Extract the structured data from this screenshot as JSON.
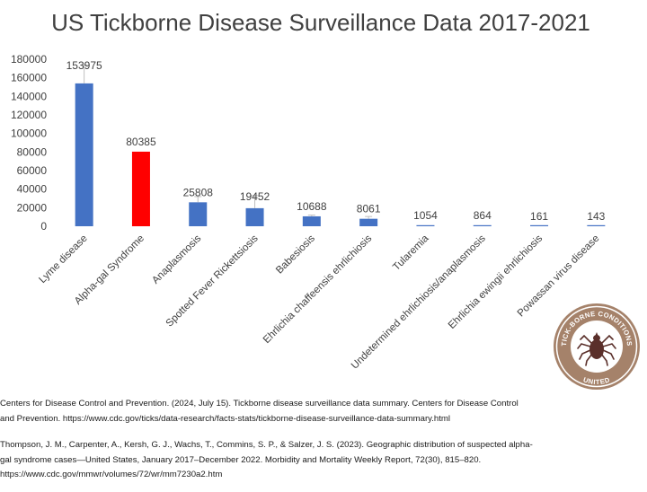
{
  "chart_data": {
    "type": "bar",
    "title": "US Tickborne Disease Surveillance Data 2017-2021",
    "xlabel": "",
    "ylabel": "",
    "ylim": [
      0,
      180000
    ],
    "yticks": [
      "0",
      "20000",
      "40000",
      "60000",
      "80000",
      "100000",
      "120000",
      "140000",
      "160000",
      "180000"
    ],
    "grid": false,
    "legend": "none",
    "categories": [
      "Lyme disease",
      "Alpha-gal Syndrome",
      "Anaplasmosis",
      "Spotted Fever Rickettsiosis",
      "Babesiosis",
      "Ehrlichia chaffeensis ehrlichiosis",
      "Tularemia",
      "Undetermined ehrlichiosis/anaplasmosis",
      "Ehrlichia ewingii ehrlichiosis",
      "Powassan virus disease"
    ],
    "values": [
      153975,
      80385,
      25808,
      19452,
      10688,
      8061,
      1054,
      864,
      161,
      143
    ],
    "value_labels": [
      "153975",
      "80385",
      "25808",
      "19452",
      "10688",
      "8061",
      "1054",
      "864",
      "161",
      "143"
    ],
    "error_upper": [
      174000,
      80385,
      32000,
      33000,
      12000,
      10500,
      1054,
      864,
      161,
      143
    ],
    "bar_colors": [
      "#4472c4",
      "#ff0000",
      "#4472c4",
      "#4472c4",
      "#4472c4",
      "#4472c4",
      "#4472c4",
      "#4472c4",
      "#4472c4",
      "#4472c4"
    ]
  },
  "logo": {
    "name": "tick-icon",
    "text_top": "TICK-BORNE CONDITIONS",
    "text_bottom": "UNITED",
    "ring_color": "#a5826a",
    "tick_color": "#5a2f2a"
  },
  "references": [
    "Centers for Disease Control and Prevention. (2024, July 15). Tickborne disease surveillance data summary. Centers for Disease Control\nand Prevention. https://www.cdc.gov/ticks/data-research/facts-stats/tickborne-disease-surveillance-data-summary.html",
    "Thompson, J. M., Carpenter, A., Kersh, G. J., Wachs, T., Commins, S. P., & Salzer, J. S. (2023). Geographic distribution of suspected alpha-\ngal syndrome cases—United States, January 2017–December 2022. Morbidity and Mortality Weekly Report, 72(30), 815–820.\nhttps://www.cdc.gov/mmwr/volumes/72/wr/mm7230a2.htm"
  ]
}
